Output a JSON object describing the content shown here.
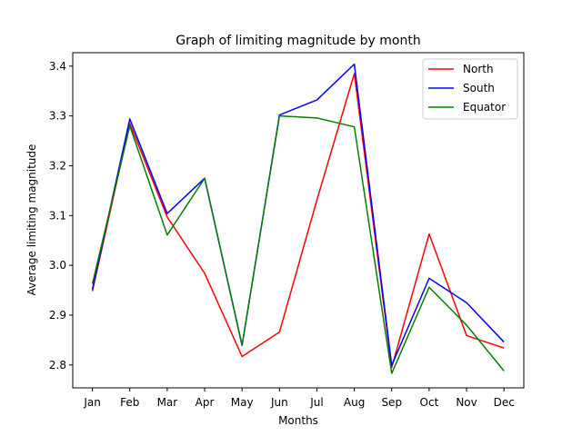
{
  "chart_data": {
    "type": "line",
    "title": "Graph of limiting magnitude by month",
    "xlabel": "Months",
    "ylabel": "Average limiting magnitude",
    "categories": [
      "Jan",
      "Feb",
      "Mar",
      "Apr",
      "May",
      "Jun",
      "Jul",
      "Aug",
      "Sep",
      "Oct",
      "Nov",
      "Dec"
    ],
    "ylim": [
      2.754,
      3.427
    ],
    "yticks": [
      "2.8",
      "2.9",
      "3.0",
      "3.1",
      "3.2",
      "3.3",
      "3.4"
    ],
    "grid": false,
    "legend_position": "top-right",
    "series": [
      {
        "name": "North",
        "color": "#ff0000",
        "values": [
          2.948,
          3.285,
          3.097,
          2.984,
          2.817,
          2.866,
          3.131,
          3.385,
          2.795,
          3.063,
          2.859,
          2.834
        ]
      },
      {
        "name": "South",
        "color": "#0000ff",
        "values": [
          2.952,
          3.294,
          3.104,
          3.175,
          2.839,
          3.302,
          3.332,
          3.404,
          2.799,
          2.974,
          2.925,
          2.846
        ]
      },
      {
        "name": "Equator",
        "color": "#008000",
        "values": [
          2.963,
          3.28,
          3.061,
          3.175,
          2.84,
          3.3,
          3.296,
          3.278,
          2.783,
          2.956,
          2.88,
          2.788
        ]
      }
    ]
  }
}
